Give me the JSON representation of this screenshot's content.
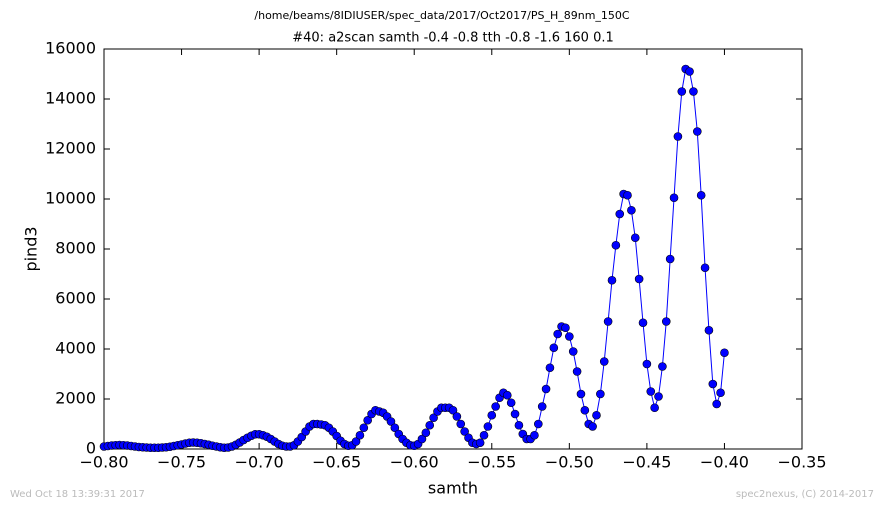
{
  "chart_data": {
    "type": "line",
    "suptitle": "/home/beams/8IDIUSER/spec_data/2017/Oct2017/PS_H_89nm_150C",
    "title": "#40: a2scan  samth -0.4 -0.8  tth -0.8 -1.6  160 0.1",
    "xlabel": "samth",
    "ylabel": "pind3",
    "footer_left": "Wed Oct 18 13:39:31 2017",
    "footer_right": "spec2nexus, (C) 2014-2017",
    "color": "#0000ff",
    "marker": true,
    "xlim": [
      -0.8,
      -0.35
    ],
    "ylim": [
      0,
      16000
    ],
    "xticks": [
      {
        "value": -0.8,
        "label": "−0.80"
      },
      {
        "value": -0.75,
        "label": "−0.75"
      },
      {
        "value": -0.7,
        "label": "−0.70"
      },
      {
        "value": -0.65,
        "label": "−0.65"
      },
      {
        "value": -0.6,
        "label": "−0.60"
      },
      {
        "value": -0.55,
        "label": "−0.55"
      },
      {
        "value": -0.5,
        "label": "−0.50"
      },
      {
        "value": -0.45,
        "label": "−0.45"
      },
      {
        "value": -0.4,
        "label": "−0.40"
      },
      {
        "value": -0.35,
        "label": "−0.35"
      }
    ],
    "yticks": [
      0,
      2000,
      4000,
      6000,
      8000,
      10000,
      12000,
      14000,
      16000
    ],
    "x": [
      -0.8,
      -0.7975,
      -0.795,
      -0.7925,
      -0.79,
      -0.7875,
      -0.785,
      -0.7825,
      -0.78,
      -0.7775,
      -0.775,
      -0.7725,
      -0.77,
      -0.7675,
      -0.765,
      -0.7625,
      -0.76,
      -0.7575,
      -0.755,
      -0.7525,
      -0.75,
      -0.7475,
      -0.745,
      -0.7425,
      -0.74,
      -0.7375,
      -0.735,
      -0.7325,
      -0.73,
      -0.7275,
      -0.725,
      -0.7225,
      -0.72,
      -0.7175,
      -0.715,
      -0.7125,
      -0.71,
      -0.7075,
      -0.705,
      -0.7025,
      -0.7,
      -0.6975,
      -0.695,
      -0.6925,
      -0.69,
      -0.6875,
      -0.685,
      -0.6825,
      -0.68,
      -0.6775,
      -0.675,
      -0.6725,
      -0.67,
      -0.6675,
      -0.665,
      -0.6625,
      -0.66,
      -0.6575,
      -0.655,
      -0.6525,
      -0.65,
      -0.6475,
      -0.645,
      -0.6425,
      -0.64,
      -0.6375,
      -0.635,
      -0.6325,
      -0.63,
      -0.6275,
      -0.625,
      -0.6225,
      -0.62,
      -0.6175,
      -0.615,
      -0.6125,
      -0.61,
      -0.6075,
      -0.605,
      -0.6025,
      -0.6,
      -0.5975,
      -0.595,
      -0.5925,
      -0.59,
      -0.5875,
      -0.585,
      -0.5825,
      -0.58,
      -0.5775,
      -0.575,
      -0.5725,
      -0.57,
      -0.5675,
      -0.565,
      -0.5625,
      -0.56,
      -0.5575,
      -0.555,
      -0.5525,
      -0.55,
      -0.5475,
      -0.545,
      -0.5425,
      -0.54,
      -0.5375,
      -0.535,
      -0.5325,
      -0.53,
      -0.5275,
      -0.525,
      -0.5225,
      -0.52,
      -0.5175,
      -0.515,
      -0.5125,
      -0.51,
      -0.5075,
      -0.505,
      -0.5025,
      -0.5,
      -0.4975,
      -0.495,
      -0.4925,
      -0.49,
      -0.4875,
      -0.485,
      -0.4825,
      -0.48,
      -0.4775,
      -0.475,
      -0.4725,
      -0.47,
      -0.4675,
      -0.465,
      -0.4625,
      -0.46,
      -0.4575,
      -0.455,
      -0.4525,
      -0.45,
      -0.4475,
      -0.445,
      -0.4425,
      -0.44,
      -0.4375,
      -0.435,
      -0.4325,
      -0.43,
      -0.4275,
      -0.425,
      -0.4225,
      -0.42,
      -0.4175,
      -0.415,
      -0.4125,
      -0.41,
      -0.4075,
      -0.405,
      -0.4025,
      -0.4
    ],
    "values": [
      100,
      120,
      140,
      150,
      160,
      150,
      140,
      120,
      100,
      80,
      70,
      60,
      50,
      50,
      50,
      60,
      70,
      90,
      120,
      150,
      180,
      220,
      250,
      260,
      250,
      230,
      200,
      170,
      130,
      100,
      70,
      50,
      60,
      100,
      170,
      260,
      360,
      450,
      530,
      590,
      590,
      550,
      490,
      400,
      300,
      200,
      130,
      100,
      100,
      150,
      300,
      480,
      700,
      900,
      1000,
      1000,
      980,
      950,
      850,
      700,
      520,
      330,
      200,
      130,
      150,
      300,
      550,
      850,
      1150,
      1400,
      1550,
      1500,
      1450,
      1300,
      1100,
      850,
      600,
      400,
      250,
      150,
      130,
      200,
      400,
      650,
      950,
      1250,
      1500,
      1650,
      1650,
      1650,
      1550,
      1300,
      1000,
      700,
      450,
      250,
      200,
      250,
      550,
      900,
      1350,
      1700,
      2050,
      2250,
      2150,
      1850,
      1400,
      950,
      600,
      400,
      400,
      550,
      1000,
      1700,
      2400,
      3250,
      4050,
      4600,
      4900,
      4850,
      4500,
      3900,
      3100,
      2200,
      1550,
      1000,
      900,
      1350,
      2200,
      3500,
      5100,
      6750,
      8150,
      9400,
      10200,
      10150,
      9550,
      8450,
      6800,
      5050,
      3400,
      2300,
      1650,
      2100,
      3300,
      5100,
      7600,
      10050,
      12500,
      14300,
      15200,
      15100,
      14300,
      12700,
      10150,
      7250,
      4750,
      2600,
      1800,
      2250,
      3850
    ]
  }
}
